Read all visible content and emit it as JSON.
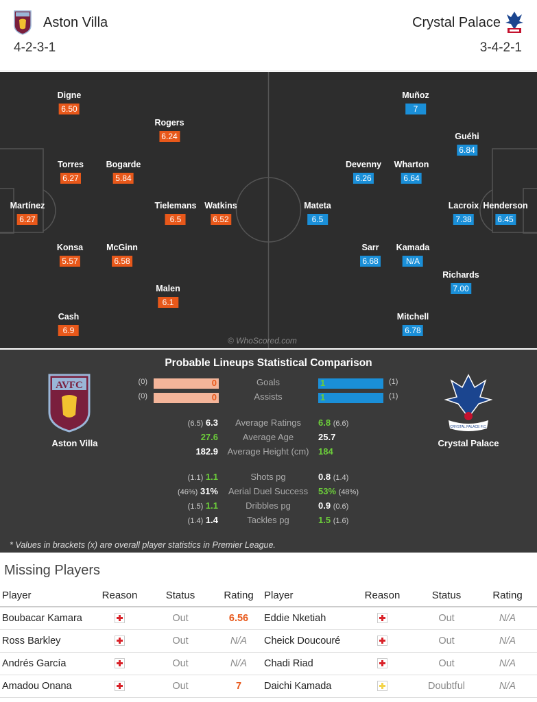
{
  "header": {
    "home": {
      "name": "Aston Villa",
      "formation": "4-2-3-1"
    },
    "away": {
      "name": "Crystal Palace",
      "formation": "3-4-2-1"
    }
  },
  "pitch": {
    "home_players": [
      {
        "name": "Digne",
        "rating": "6.50"
      },
      {
        "name": "Rogers",
        "rating": "6.24"
      },
      {
        "name": "Torres",
        "rating": "6.27"
      },
      {
        "name": "Bogarde",
        "rating": "5.84"
      },
      {
        "name": "Martínez",
        "rating": "6.27"
      },
      {
        "name": "Tielemans",
        "rating": "6.5"
      },
      {
        "name": "Watkins",
        "rating": "6.52"
      },
      {
        "name": "Konsa",
        "rating": "5.57"
      },
      {
        "name": "McGinn",
        "rating": "6.58"
      },
      {
        "name": "Malen",
        "rating": "6.1"
      },
      {
        "name": "Cash",
        "rating": "6.9"
      }
    ],
    "away_players": [
      {
        "name": "Muñoz",
        "rating": "7"
      },
      {
        "name": "Guéhi",
        "rating": "6.84"
      },
      {
        "name": "Devenny",
        "rating": "6.26"
      },
      {
        "name": "Wharton",
        "rating": "6.64"
      },
      {
        "name": "Mateta",
        "rating": "6.5"
      },
      {
        "name": "Lacroix",
        "rating": "7.38"
      },
      {
        "name": "Henderson",
        "rating": "6.45"
      },
      {
        "name": "Sarr",
        "rating": "6.68"
      },
      {
        "name": "Kamada",
        "rating": "N/A"
      },
      {
        "name": "Richards",
        "rating": "7.00"
      },
      {
        "name": "Mitchell",
        "rating": "6.78"
      }
    ],
    "watermark": "© WhoScored.com"
  },
  "comparison": {
    "title": "Probable Lineups Statistical Comparison",
    "home_label": "Aston Villa",
    "away_label": "Crystal Palace",
    "home_crest_text": "AVFC",
    "away_crest_text": "CRYSTAL PALACE F.C.",
    "bars": [
      {
        "label": "Goals",
        "home": "0",
        "home_bk": "(0)",
        "away": "1",
        "away_bk": "(1)",
        "home_fill": 1.0,
        "away_fill": 1.0
      },
      {
        "label": "Assists",
        "home": "0",
        "home_bk": "(0)",
        "away": "1",
        "away_bk": "(1)",
        "home_fill": 1.0,
        "away_fill": 1.0
      }
    ],
    "stats": [
      {
        "label": "Average Ratings",
        "home_bk": "(6.5)",
        "home": "6.3",
        "away": "6.8",
        "away_bk": "(6.6)"
      },
      {
        "label": "Average Age",
        "home_bk": "",
        "home": "27.6",
        "away": "25.7",
        "away_bk": ""
      },
      {
        "label": "Average Height (cm)",
        "home_bk": "",
        "home": "182.9",
        "away": "184",
        "away_bk": ""
      },
      {
        "label": "Shots pg",
        "home_bk": "(1.1)",
        "home": "1.1",
        "away": "0.8",
        "away_bk": "(1.4)"
      },
      {
        "label": "Aerial Duel Success",
        "home_bk": "(46%)",
        "home": "31%",
        "away": "53%",
        "away_bk": "(48%)"
      },
      {
        "label": "Dribbles pg",
        "home_bk": "(1.5)",
        "home": "1.1",
        "away": "0.9",
        "away_bk": "(0.6)"
      },
      {
        "label": "Tackles pg",
        "home_bk": "(1.4)",
        "home": "1.4",
        "away": "1.5",
        "away_bk": "(1.6)"
      }
    ],
    "footnote": "* Values in brackets (x) are overall player statistics in Premier League."
  },
  "missing": {
    "title": "Missing Players",
    "headers": [
      "Player",
      "Reason",
      "Status",
      "Rating",
      "Player",
      "Reason",
      "Status",
      "Rating"
    ],
    "rows": [
      {
        "hp": "Boubacar Kamara",
        "hs": "Out",
        "hr": "6.56",
        "ap": "Eddie Nketiah",
        "as": "Out",
        "ar": "N/A"
      },
      {
        "hp": "Ross Barkley",
        "hs": "Out",
        "hr": "N/A",
        "ap": "Cheick Doucouré",
        "as": "Out",
        "ar": "N/A"
      },
      {
        "hp": "Andrés García",
        "hs": "Out",
        "hr": "N/A",
        "ap": "Chadi Riad",
        "as": "Out",
        "ar": "N/A"
      },
      {
        "hp": "Amadou Onana",
        "hs": "Out",
        "hr": "7",
        "ap": "Daichi Kamada",
        "as": "Doubtful",
        "ar": "N/A"
      }
    ]
  },
  "colors": {
    "home_accent": "#e8581a",
    "away_accent": "#1a8fd8",
    "highlight": "#6ccd3a",
    "pitch": "#2d2d2d",
    "panel": "#3a3a3a"
  }
}
